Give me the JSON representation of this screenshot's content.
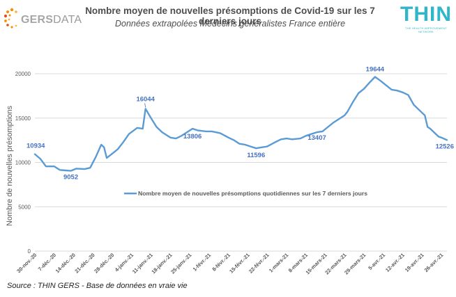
{
  "header": {
    "title": "Nombre moyen de nouvelles présomptions de Covid-19 sur les 7 derniers jours",
    "subtitle": "Données extrapolées Médecins généralistes France entière",
    "logo_left": {
      "part1": "GERS",
      "part2": "DATA"
    },
    "logo_right": {
      "main": "THIN",
      "tagline": "THE HEALTH IMPROVEMENT NETWORK"
    }
  },
  "footer": {
    "source": "Source : THIN GERS - Base de données en vraie vie"
  },
  "colors": {
    "line": "#5b9bd5",
    "label": "#4472c4",
    "axis_text": "#595959",
    "gridline": "#d9d9d9"
  },
  "chart_data": {
    "type": "line",
    "ylabel": "Nombre de nouvelles présomptions",
    "ylim": [
      0,
      20000
    ],
    "yticks": [
      0,
      5000,
      10000,
      15000,
      20000
    ],
    "grid": true,
    "legend_position": "center",
    "x_start": "2020-11-30",
    "x_end": "2021-04-28",
    "xtick_labels": [
      "30-nov.-20",
      "7-déc.-20",
      "14-déc.-20",
      "21-déc.-20",
      "28-déc.-20",
      "4-janv.-21",
      "11-janv.-21",
      "18-janv.-21",
      "25-janv.-21",
      "1-févr.-21",
      "8-févr.-21",
      "15-févr.-21",
      "22-févr.-21",
      "1-mars-21",
      "8-mars-21",
      "15-mars-21",
      "22-mars-21",
      "29-mars-21",
      "5-avr.-21",
      "12-avr.-21",
      "19-avr.-21",
      "26-avr.-21"
    ],
    "series": [
      {
        "name": "Nombre moyen de nouvelles présomptions quotidiennes sur les 7 derniers jours",
        "points": [
          [
            "2020-11-30",
            10934
          ],
          [
            "2020-12-02",
            10400
          ],
          [
            "2020-12-04",
            9550
          ],
          [
            "2020-12-07",
            9550
          ],
          [
            "2020-12-09",
            9150
          ],
          [
            "2020-12-11",
            9100
          ],
          [
            "2020-12-13",
            9052
          ],
          [
            "2020-12-15",
            9300
          ],
          [
            "2020-12-18",
            9250
          ],
          [
            "2020-12-20",
            9400
          ],
          [
            "2020-12-22",
            10600
          ],
          [
            "2020-12-24",
            12000
          ],
          [
            "2020-12-25",
            11700
          ],
          [
            "2020-12-26",
            10500
          ],
          [
            "2020-12-28",
            11000
          ],
          [
            "2020-12-30",
            11500
          ],
          [
            "2021-01-01",
            12300
          ],
          [
            "2021-01-03",
            13200
          ],
          [
            "2021-01-06",
            13900
          ],
          [
            "2021-01-08",
            13800
          ],
          [
            "2021-01-09",
            16044
          ],
          [
            "2021-01-11",
            15000
          ],
          [
            "2021-01-13",
            14000
          ],
          [
            "2021-01-15",
            13400
          ],
          [
            "2021-01-18",
            12800
          ],
          [
            "2021-01-20",
            12700
          ],
          [
            "2021-01-22",
            13000
          ],
          [
            "2021-01-24",
            13400
          ],
          [
            "2021-01-26",
            13806
          ],
          [
            "2021-01-28",
            13600
          ],
          [
            "2021-01-31",
            13500
          ],
          [
            "2021-02-02",
            13500
          ],
          [
            "2021-02-05",
            13300
          ],
          [
            "2021-02-08",
            12800
          ],
          [
            "2021-02-10",
            12500
          ],
          [
            "2021-02-12",
            12100
          ],
          [
            "2021-02-14",
            12000
          ],
          [
            "2021-02-16",
            11800
          ],
          [
            "2021-02-18",
            11596
          ],
          [
            "2021-02-20",
            11700
          ],
          [
            "2021-02-22",
            11800
          ],
          [
            "2021-02-25",
            12300
          ],
          [
            "2021-02-27",
            12600
          ],
          [
            "2021-03-01",
            12700
          ],
          [
            "2021-03-03",
            12600
          ],
          [
            "2021-03-06",
            12700
          ],
          [
            "2021-03-08",
            13000
          ],
          [
            "2021-03-10",
            13200
          ],
          [
            "2021-03-12",
            13407
          ],
          [
            "2021-03-14",
            13500
          ],
          [
            "2021-03-16",
            14000
          ],
          [
            "2021-03-18",
            14500
          ],
          [
            "2021-03-20",
            14900
          ],
          [
            "2021-03-22",
            15300
          ],
          [
            "2021-03-23",
            15700
          ],
          [
            "2021-03-25",
            16800
          ],
          [
            "2021-03-27",
            17800
          ],
          [
            "2021-03-29",
            18300
          ],
          [
            "2021-03-31",
            19000
          ],
          [
            "2021-04-02",
            19644
          ],
          [
            "2021-04-04",
            19200
          ],
          [
            "2021-04-06",
            18700
          ],
          [
            "2021-04-08",
            18200
          ],
          [
            "2021-04-10",
            18100
          ],
          [
            "2021-04-12",
            17900
          ],
          [
            "2021-04-14",
            17600
          ],
          [
            "2021-04-16",
            16500
          ],
          [
            "2021-04-18",
            15900
          ],
          [
            "2021-04-20",
            15300
          ],
          [
            "2021-04-21",
            14000
          ],
          [
            "2021-04-22",
            13800
          ],
          [
            "2021-04-24",
            13200
          ],
          [
            "2021-04-25",
            12900
          ],
          [
            "2021-04-26",
            12800
          ],
          [
            "2021-04-28",
            12526
          ]
        ]
      }
    ],
    "annotations": [
      {
        "x": "2020-11-30",
        "y": 10934,
        "text": "10934"
      },
      {
        "x": "2020-12-13",
        "y": 9052,
        "text": "9052"
      },
      {
        "x": "2021-01-09",
        "y": 16044,
        "text": "16044"
      },
      {
        "x": "2021-01-26",
        "y": 13806,
        "text": "13806"
      },
      {
        "x": "2021-02-18",
        "y": 11596,
        "text": "11596"
      },
      {
        "x": "2021-03-12",
        "y": 13407,
        "text": "13407"
      },
      {
        "x": "2021-04-02",
        "y": 19644,
        "text": "19644"
      },
      {
        "x": "2021-04-28",
        "y": 12526,
        "text": "12526"
      }
    ]
  }
}
